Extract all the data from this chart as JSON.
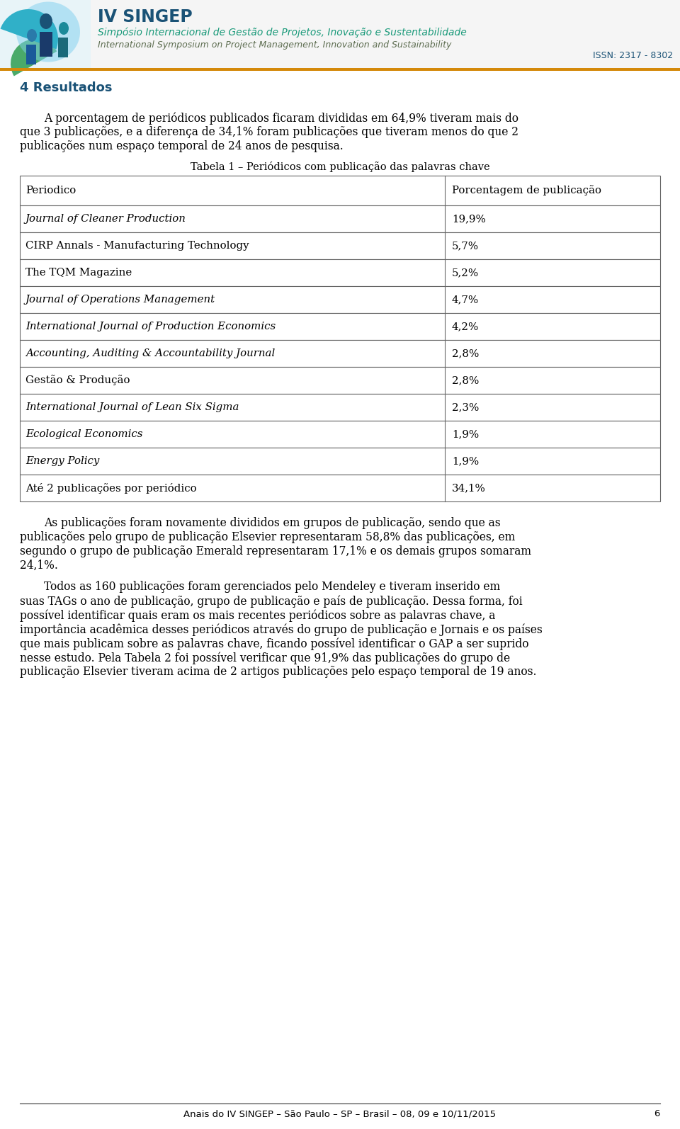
{
  "header_title_line1": "IV SINGEP",
  "header_title_line2": "Simpósio Internacional de Gestão de Projetos, Inovação e Sustentabilidade",
  "header_title_line3": "International Symposium on Project Management, Innovation and Sustainability",
  "issn": "ISSN: 2317 - 8302",
  "section_title": "4 Resultados",
  "p1_line1": "A porcentagem de periódicos publicados ficaram divididas em 64,9% tiveram mais do",
  "p1_line2": "que 3 publicações, e a diferença de 34,1% foram publicações que tiveram menos do que 2",
  "p1_line3": "publicações num espaço temporal de 24 anos de pesquisa.",
  "table_title": "Tabela 1 – Periódicos com publicação das palavras chave",
  "col_header1": "Periodico",
  "col_header2": "Porcentagem de publicação",
  "table_rows": [
    [
      "Journal of Cleaner Production",
      "19,9%",
      true
    ],
    [
      "CIRP Annals - Manufacturing Technology",
      "5,7%",
      false
    ],
    [
      "The TQM Magazine",
      "5,2%",
      false
    ],
    [
      "Journal of Operations Management",
      "4,7%",
      true
    ],
    [
      "International Journal of Production Economics",
      "4,2%",
      true
    ],
    [
      "Accounting, Auditing & Accountability Journal",
      "2,8%",
      true
    ],
    [
      "Gestão & Produção",
      "2,8%",
      false
    ],
    [
      "International Journal of Lean Six Sigma",
      "2,3%",
      true
    ],
    [
      "Ecological Economics",
      "1,9%",
      true
    ],
    [
      "Energy Policy",
      "1,9%",
      true
    ],
    [
      "Até 2 publicações por periódico",
      "34,1%",
      false
    ]
  ],
  "p2_line1": "As publicações foram novamente divididos em grupos de publicação, sendo que as",
  "p2_line2": "publicações pelo grupo de publicação Elsevier representaram 58,8% das publicações, em",
  "p2_line3": "segundo o grupo de publicação Emerald representaram 17,1% e os demais grupos somaram",
  "p2_line4": "24,1%.",
  "p3_line1": "Todos as 160 publicações foram gerenciados pelo Mendeley e tiveram inserido em",
  "p3_line2": "suas TAGs o ano de publicação, grupo de publicação e país de publicação. Dessa forma, foi",
  "p3_line3": "possível identificar quais eram os mais recentes periódicos sobre as palavras chave, a",
  "p3_line4": "importância acadêmica desses periódicos através do grupo de publicação e Jornais e os países",
  "p3_line5": "que mais publicam sobre as palavras chave, ficando possível identificar o GAP a ser suprido",
  "p3_line6": "nesse estudo. Pela Tabela 2 foi possível verificar que 91,9% das publicações do grupo de",
  "p3_line7": "publicação Elsevier tiveram acima de 2 artigos publicações pelo espaço temporal de 19 anos.",
  "footer_text": "Anais do IV SINGEP – São Paulo – SP – Brasil – 08, 09 e 10/11/2015",
  "footer_page": "6",
  "bg_color": "#ffffff",
  "text_color": "#000000",
  "header_bg": "#f5f5f5",
  "header_title_color": "#1a5276",
  "header_sub1_color": "#1a9a7a",
  "header_sub2_color": "#5d6d50",
  "issn_color": "#1a5276",
  "section_color": "#1a5276",
  "border_color": "#666666",
  "footer_color": "#333333",
  "orange_bar_color": "#d4890a"
}
